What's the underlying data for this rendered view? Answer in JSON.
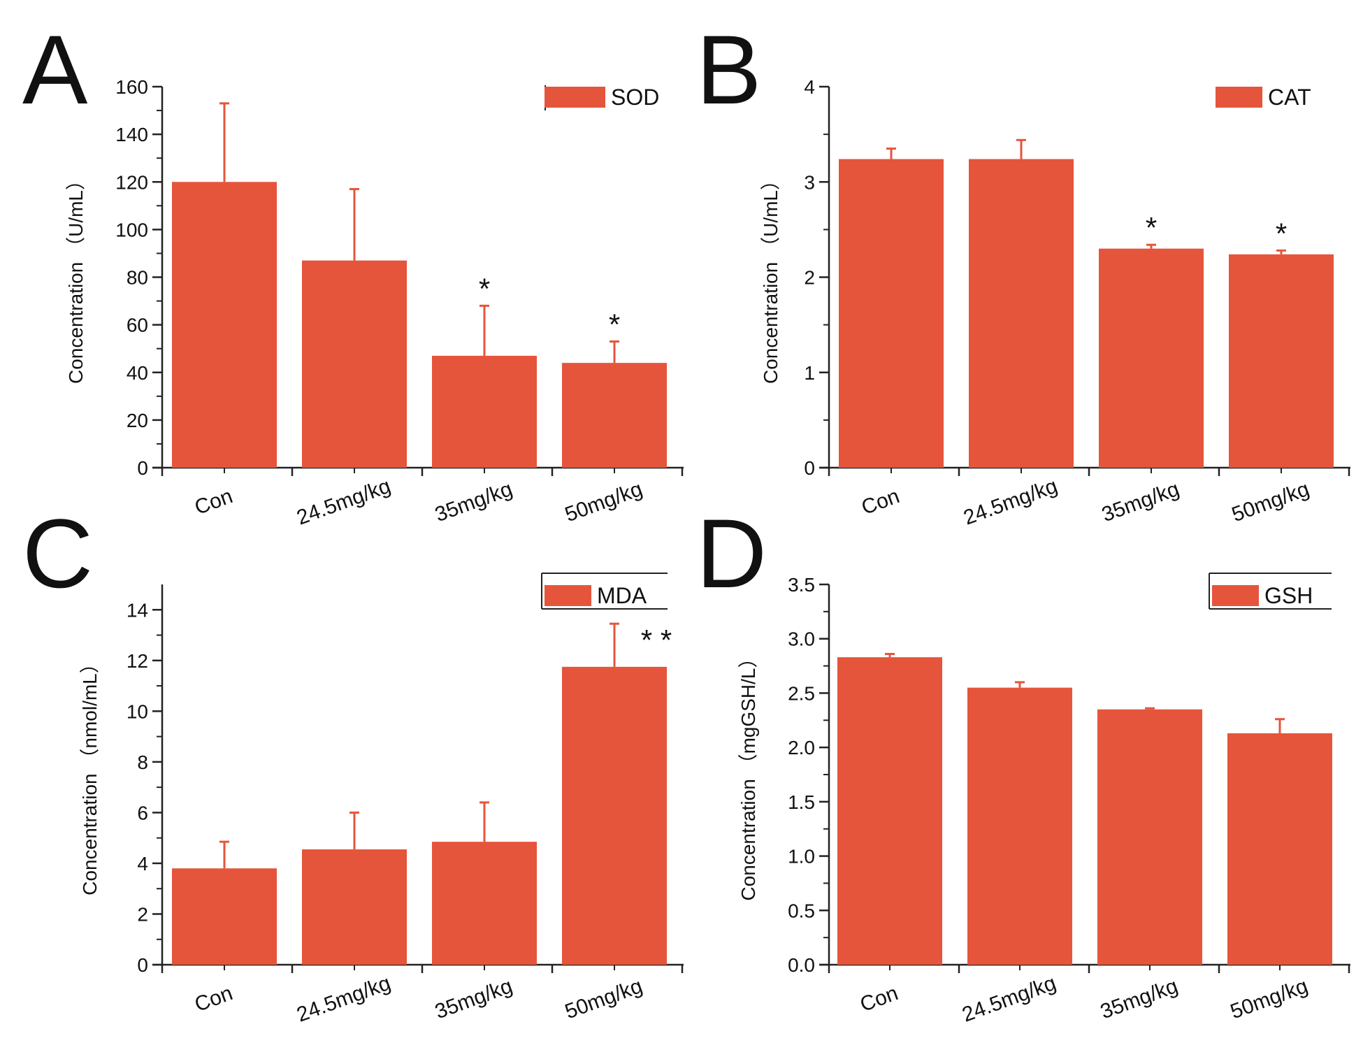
{
  "style": {
    "bar_color": "#E5553B",
    "axis_color": "#222222",
    "text_color": "#111111"
  },
  "chart_data": [
    {
      "panel": "A",
      "type": "bar",
      "categories": [
        "Con",
        "24.5mg/kg",
        "35mg/kg",
        "50mg/kg"
      ],
      "values": [
        120,
        87,
        47,
        44
      ],
      "error_upper": [
        153,
        117,
        68,
        53
      ],
      "significance": [
        "",
        "",
        "*",
        "*"
      ],
      "legend": "SOD",
      "ylabel": "Concentration （U/mL）",
      "ylim": [
        0,
        160
      ],
      "yticks": [
        0,
        20,
        40,
        60,
        80,
        100,
        120,
        140,
        160
      ],
      "ytick_labels": [
        "0",
        "20",
        "40",
        "60",
        "80",
        "100",
        "120",
        "140",
        "160"
      ]
    },
    {
      "panel": "B",
      "type": "bar",
      "categories": [
        "Con",
        "24.5mg/kg",
        "35mg/kg",
        "50mg/kg"
      ],
      "values": [
        3.24,
        3.24,
        2.3,
        2.24
      ],
      "error_upper": [
        3.35,
        3.44,
        2.34,
        2.28
      ],
      "significance": [
        "",
        "",
        "*",
        "*"
      ],
      "legend": "CAT",
      "ylabel": "Concentration （U/mL）",
      "ylim": [
        0,
        4
      ],
      "yticks": [
        0,
        1,
        2,
        3,
        4
      ],
      "ytick_labels": [
        "0",
        "1",
        "2",
        "3",
        "4"
      ]
    },
    {
      "panel": "C",
      "type": "bar",
      "categories": [
        "Con",
        "24.5mg/kg",
        "35mg/kg",
        "50mg/kg"
      ],
      "values": [
        3.8,
        4.55,
        4.85,
        11.75
      ],
      "error_upper": [
        4.85,
        6.0,
        6.4,
        13.45
      ],
      "significance": [
        "",
        "",
        "",
        "* *"
      ],
      "legend": "MDA",
      "ylabel": "Concentration （nmol/mL）",
      "ylim": [
        0,
        15
      ],
      "yticks": [
        0,
        2,
        4,
        6,
        8,
        10,
        12,
        14
      ],
      "ytick_labels": [
        "0",
        "2",
        "4",
        "6",
        "8",
        "10",
        "12",
        "14"
      ]
    },
    {
      "panel": "D",
      "type": "bar",
      "categories": [
        "Con",
        "24.5mg/kg",
        "35mg/kg",
        "50mg/kg"
      ],
      "values": [
        2.83,
        2.55,
        2.35,
        2.13
      ],
      "error_upper": [
        2.86,
        2.6,
        2.36,
        2.26
      ],
      "significance": [
        "",
        "",
        "",
        ""
      ],
      "legend": "GSH",
      "ylabel": "Concentration （mgGSH/L）",
      "ylim": [
        0,
        3.5
      ],
      "yticks": [
        0,
        0.5,
        1,
        1.5,
        2,
        2.5,
        3,
        3.5
      ],
      "ytick_labels": [
        "0.0",
        "0.5",
        "1.0",
        "1.5",
        "2.0",
        "2.5",
        "3.0",
        "3.5"
      ]
    }
  ]
}
